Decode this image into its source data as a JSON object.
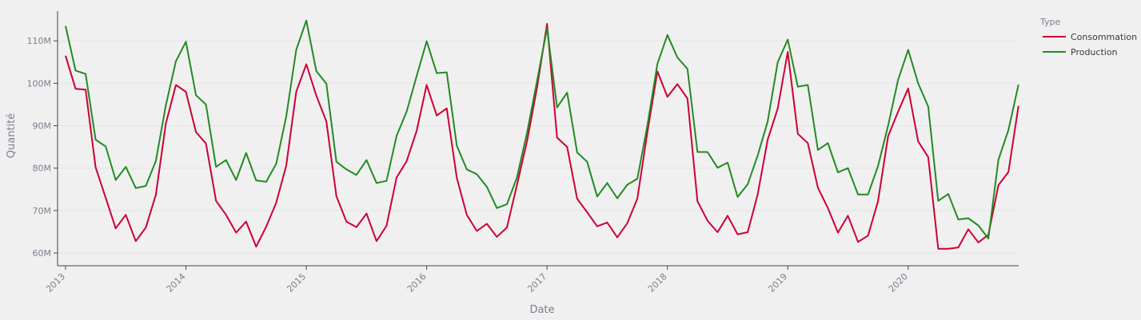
{
  "chart_data": {
    "type": "line",
    "xlabel": "Date",
    "ylabel": "Quantité",
    "x_start": "2013-01",
    "x_ticks": [
      "2013",
      "2014",
      "2015",
      "2016",
      "2017",
      "2018",
      "2019",
      "2020"
    ],
    "y_ticks": [
      "60M",
      "70M",
      "80M",
      "90M",
      "100M",
      "110M"
    ],
    "y_tick_values": [
      60,
      70,
      80,
      90,
      100,
      110
    ],
    "ylim": [
      57,
      117
    ],
    "unit": "M",
    "legend": {
      "title": "Type",
      "position": "top-right"
    },
    "grid": "horizontal",
    "series": [
      {
        "name": "Consommation",
        "color": "#cc0033",
        "values": [
          106.5,
          98.7,
          98.5,
          80.2,
          73.0,
          65.8,
          69.0,
          62.8,
          66.0,
          73.7,
          90.5,
          99.6,
          98.0,
          88.5,
          85.8,
          72.3,
          69.0,
          64.8,
          67.4,
          61.5,
          66.2,
          71.8,
          80.6,
          98.0,
          104.5,
          97.1,
          91.0,
          73.4,
          67.4,
          66.1,
          69.3,
          62.8,
          66.4,
          77.8,
          81.6,
          88.8,
          99.6,
          92.4,
          94.1,
          77.7,
          69.0,
          65.2,
          66.9,
          63.8,
          66.0,
          76.0,
          86.3,
          98.9,
          114.0,
          87.2,
          85.0,
          72.8,
          69.6,
          66.3,
          67.2,
          63.7,
          67.0,
          72.8,
          88.4,
          102.8,
          96.8,
          99.8,
          96.4,
          72.2,
          67.6,
          64.9,
          68.8,
          64.4,
          64.9,
          73.8,
          86.7,
          94.1,
          107.4,
          88.1,
          85.9,
          75.4,
          70.6,
          64.8,
          68.8,
          62.6,
          64.1,
          72.2,
          87.5,
          93.3,
          98.8,
          86.3,
          82.6,
          61.0,
          61.0,
          61.3,
          65.6,
          62.5,
          64.3,
          76.0,
          79.1,
          94.7
        ]
      },
      {
        "name": "Production",
        "color": "#228b22",
        "values": [
          113.5,
          103.0,
          102.2,
          86.7,
          85.1,
          77.2,
          80.3,
          75.3,
          75.8,
          81.7,
          94.8,
          105.2,
          109.8,
          97.2,
          95.0,
          80.3,
          81.9,
          77.2,
          83.6,
          77.1,
          76.8,
          81.0,
          92.2,
          107.9,
          114.8,
          102.9,
          99.9,
          81.5,
          79.7,
          78.4,
          81.9,
          76.5,
          77.0,
          87.6,
          93.3,
          101.7,
          109.9,
          102.4,
          102.6,
          85.3,
          79.7,
          78.6,
          75.6,
          70.6,
          71.5,
          77.8,
          88.3,
          100.5,
          113.0,
          94.3,
          97.8,
          83.7,
          81.5,
          73.3,
          76.5,
          72.9,
          76.1,
          77.5,
          90.0,
          104.6,
          111.4,
          106.1,
          103.4,
          83.8,
          83.8,
          80.1,
          81.3,
          73.2,
          76.2,
          83.0,
          91.0,
          105.0,
          110.3,
          99.2,
          99.6,
          84.3,
          85.9,
          79.0,
          80.0,
          73.8,
          73.8,
          80.5,
          90.0,
          100.8,
          107.9,
          100.0,
          94.5,
          72.3,
          73.9,
          67.9,
          68.2,
          66.5,
          63.4,
          82.0,
          89.0,
          99.7
        ]
      }
    ]
  }
}
